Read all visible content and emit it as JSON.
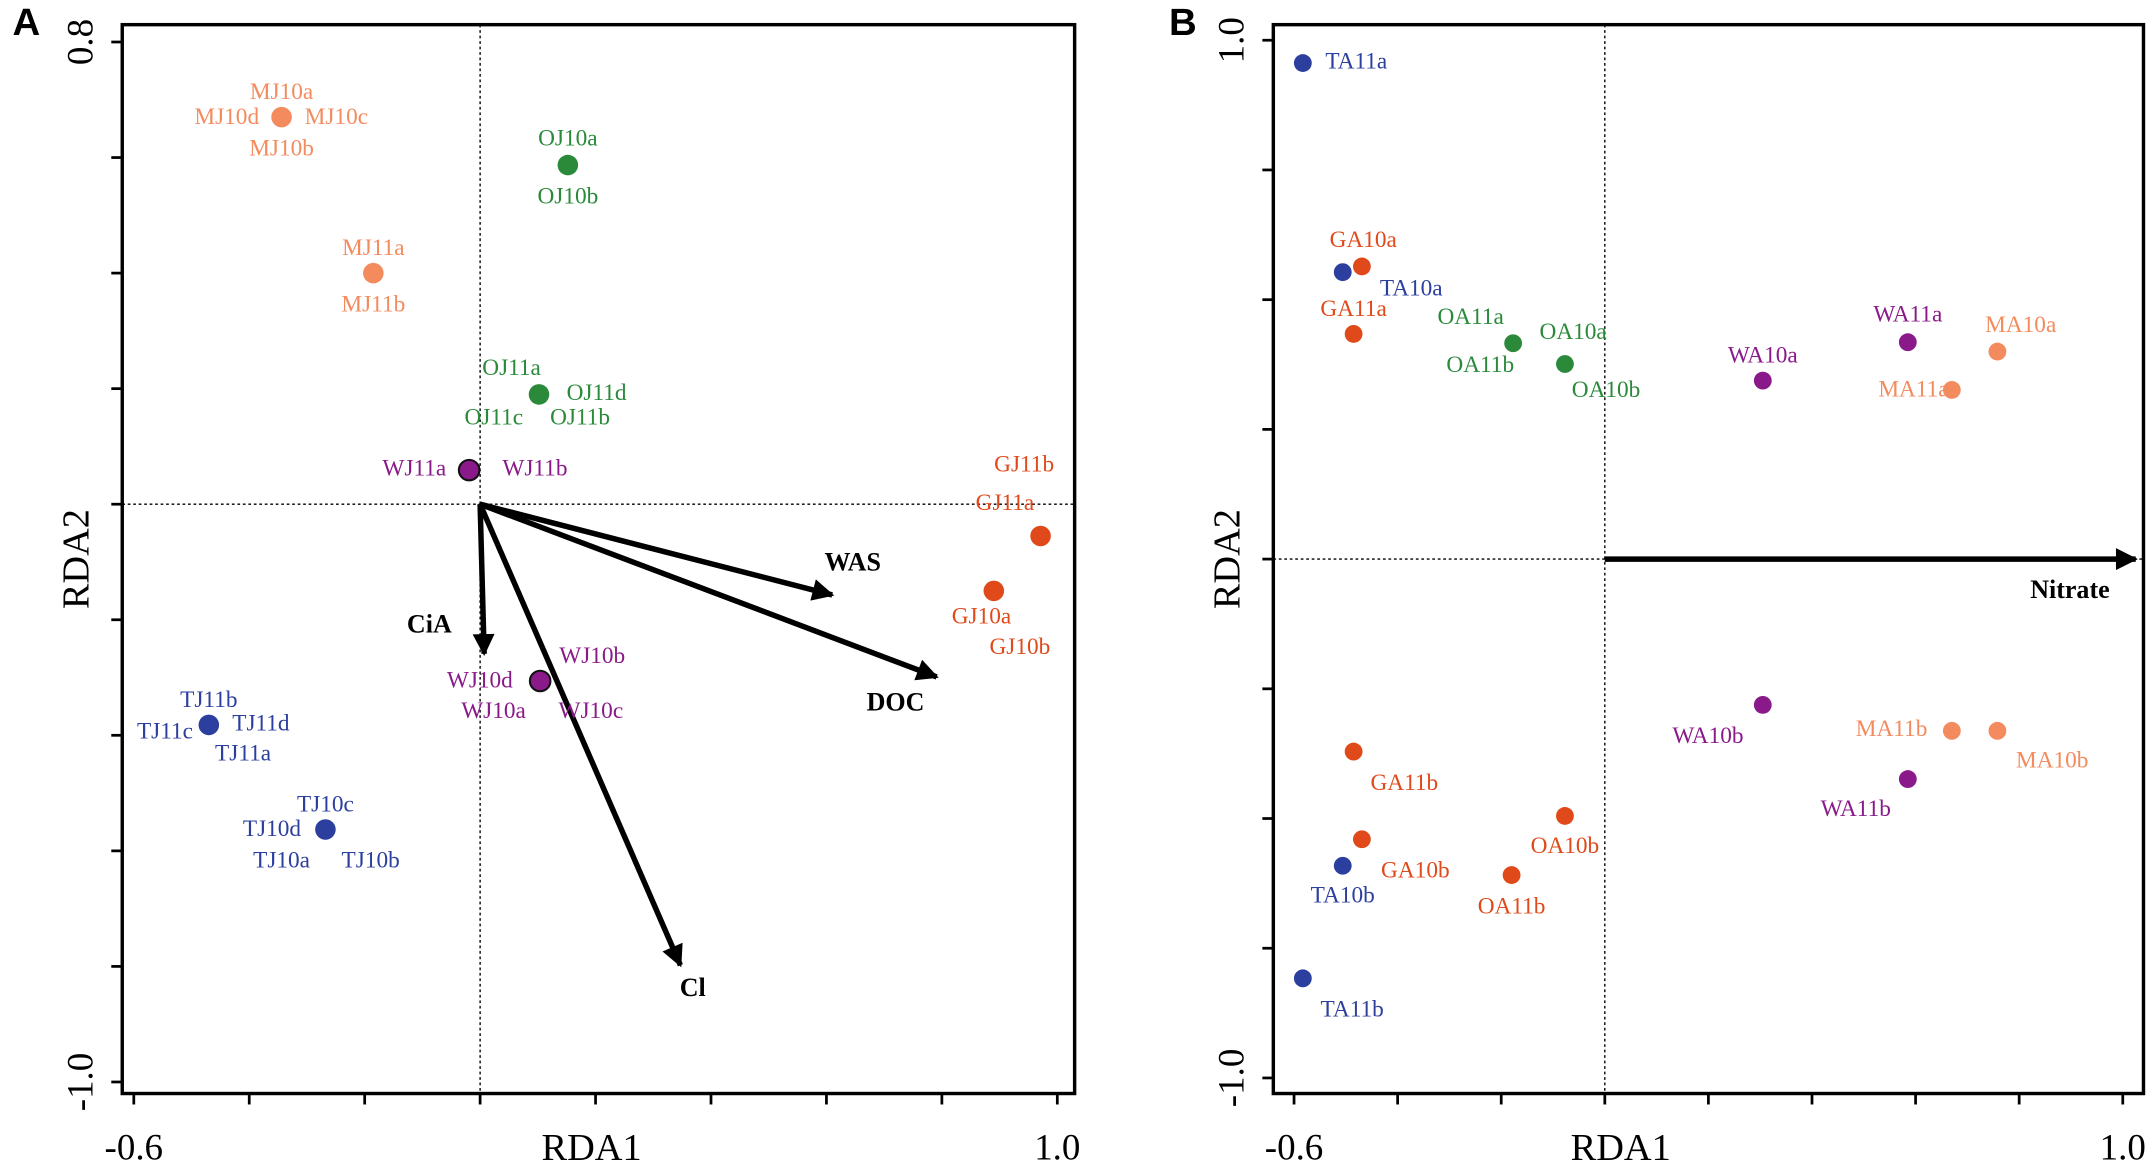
{
  "chart_data": [
    {
      "type": "scatter",
      "panel": "A",
      "xlabel": "RDA1",
      "ylabel": "RDA2",
      "xlim": [
        -0.62,
        1.03
      ],
      "ylim": [
        -1.02,
        0.83
      ],
      "xticks": [
        {
          "value": -0.6,
          "label": "-0.6"
        },
        {
          "value": 1.0,
          "label": "1.0"
        }
      ],
      "xminor_ticks": [
        -0.4,
        -0.2,
        0,
        0.2,
        0.4,
        0.6,
        0.8
      ],
      "yticks": [
        0.8,
        {
          "value": -1.0,
          "label": "-1.0"
        }
      ],
      "yminor_ticks": [
        -0.8,
        -0.6,
        -0.4,
        -0.2,
        0,
        0.2,
        0.4,
        0.6
      ],
      "series": [
        {
          "color": "#f38b5e",
          "x": [
            -0.344,
            -0.185
          ],
          "y": [
            0.67,
            0.4
          ],
          "labels": [
            [
              "MJ10a",
              "MJ10d",
              "MJ10c",
              "MJ10b"
            ],
            [
              "MJ11a",
              "MJ11b"
            ]
          ]
        },
        {
          "color": "#2a8a3a",
          "x": [
            0.152,
            0.102
          ],
          "y": [
            0.587,
            0.19
          ],
          "labels": [
            [
              "OJ10a",
              "OJ10b"
            ],
            [
              "OJ11a",
              "OJ11d",
              "OJ11c",
              "OJ11b"
            ]
          ]
        },
        {
          "color": "#8a1a8a",
          "outline": "#111111",
          "x": [
            -0.019,
            0.104
          ],
          "y": [
            0.059,
            -0.306
          ],
          "labels": [
            [
              "WJ11a",
              "WJ11b"
            ],
            [
              "WJ10b",
              "WJ10d",
              "WJ10a",
              "WJ10c"
            ]
          ]
        },
        {
          "color": "#e04a1a",
          "x": [
            0.971,
            0.89
          ],
          "y": [
            -0.055,
            -0.15
          ],
          "labels": [
            [
              "GJ11b",
              "GJ11a"
            ],
            [
              "GJ10a",
              "GJ10b"
            ]
          ]
        },
        {
          "color": "#2c3f9e",
          "x": [
            -0.47,
            -0.268
          ],
          "y": [
            -0.382,
            -0.563
          ],
          "labels": [
            [
              "TJ11b",
              "TJ11c",
              "TJ11d",
              "TJ11a"
            ],
            [
              "TJ10c",
              "TJ10d",
              "TJ10a",
              "TJ10b"
            ]
          ]
        }
      ],
      "arrows": [
        {
          "label": "WAS",
          "x": 0.61,
          "y": -0.157
        },
        {
          "label": "DOC",
          "x": 0.791,
          "y": -0.299
        },
        {
          "label": "CiA",
          "x": 0.007,
          "y": -0.259
        },
        {
          "label": "Cl",
          "x": 0.347,
          "y": -0.798
        }
      ]
    },
    {
      "type": "scatter",
      "panel": "B",
      "xlabel": "RDA1",
      "ylabel": "RDA2",
      "xlim": [
        -0.64,
        1.04
      ],
      "ylim": [
        -1.03,
        1.03
      ],
      "xticks": [
        {
          "value": -0.6,
          "label": "-0.6"
        },
        {
          "value": 1.0,
          "label": "1.0"
        }
      ],
      "xminor_ticks": [
        -0.4,
        -0.2,
        0,
        0.2,
        0.4,
        0.6,
        0.8
      ],
      "yticks": [
        {
          "value": 1.0,
          "label": "1.0"
        },
        {
          "value": -1.0,
          "label": "-1.0"
        }
      ],
      "yminor_ticks": [
        -0.75,
        -0.5,
        -0.25,
        0,
        0.25,
        0.5,
        0.75
      ],
      "series": [
        {
          "color": "#2c3f9e",
          "x": [
            -0.583,
            -0.506,
            -0.506,
            -0.583
          ],
          "y": [
            0.956,
            0.553,
            -0.591,
            -0.808
          ],
          "labels": [
            [
              "TA11a"
            ],
            [
              "TA10a"
            ],
            [
              "TA10b"
            ],
            [
              "TA11b"
            ]
          ]
        },
        {
          "color": "#e04a1a",
          "x": [
            -0.469,
            -0.485,
            -0.485,
            -0.469,
            -0.077,
            -0.18
          ],
          "y": [
            0.564,
            0.434,
            -0.371,
            -0.54,
            -0.495,
            -0.609
          ],
          "labels": [
            [
              "GA10a"
            ],
            [
              "GA11a"
            ],
            [
              "GA11b"
            ],
            [
              "GA10b"
            ],
            [
              "OA10b"
            ],
            [
              "OA11b"
            ]
          ]
        },
        {
          "color": "#2a8a3a",
          "x": [
            -0.177,
            -0.077
          ],
          "y": [
            0.416,
            0.376
          ],
          "labels": [
            [
              "OA11a",
              "OA11b"
            ],
            [
              "OA10a",
              "OA10b"
            ]
          ]
        },
        {
          "color": "#8a1a8a",
          "x": [
            0.305,
            0.585,
            0.305,
            0.585
          ],
          "y": [
            0.344,
            0.418,
            -0.281,
            -0.424
          ],
          "labels": [
            [
              "WA10a"
            ],
            [
              "WA11a"
            ],
            [
              "WA10b"
            ],
            [
              "WA11b"
            ]
          ]
        },
        {
          "color": "#f38b5e",
          "x": [
            0.758,
            0.67,
            0.67,
            0.758
          ],
          "y": [
            0.4,
            0.326,
            -0.331,
            -0.331
          ],
          "labels": [
            [
              "MA10a"
            ],
            [
              "MA11a"
            ],
            [
              "MA11b"
            ],
            [
              "MA10b"
            ]
          ]
        }
      ],
      "arrows": [
        {
          "label": "Nitrate",
          "x": 1.025,
          "y": 0
        }
      ]
    }
  ]
}
